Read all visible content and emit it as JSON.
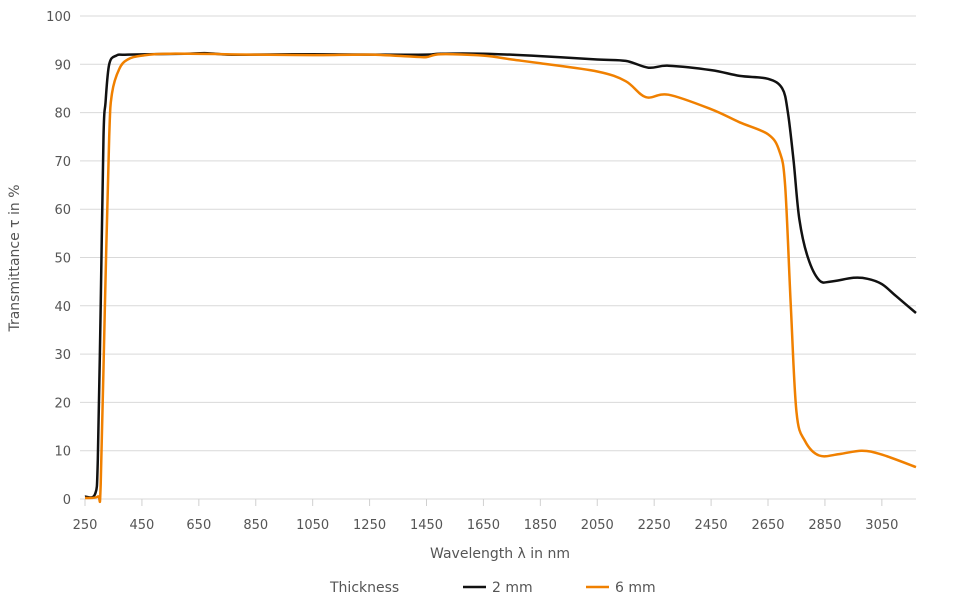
{
  "chart_data": {
    "type": "line",
    "title": "",
    "xlabel": "Wavelength λ in nm",
    "ylabel": "Transmittance τ in %",
    "xlim": [
      250,
      3170
    ],
    "ylim": [
      0,
      100
    ],
    "xticks": [
      250,
      450,
      650,
      850,
      1050,
      1250,
      1450,
      1650,
      1850,
      2050,
      2250,
      2450,
      2650,
      2850,
      3050
    ],
    "yticks": [
      0,
      10,
      20,
      30,
      40,
      50,
      60,
      70,
      80,
      90,
      100
    ],
    "grid": "horizontal",
    "legend": {
      "title": "Thickness",
      "placement": "bottom"
    },
    "series": [
      {
        "name": "2 mm",
        "color": "#111111",
        "x": [
          250,
          285,
          295,
          305,
          315,
          322,
          335,
          360,
          400,
          600,
          680,
          750,
          850,
          1050,
          1250,
          1450,
          1500,
          1650,
          1850,
          2050,
          2150,
          2230,
          2300,
          2450,
          2550,
          2650,
          2700,
          2720,
          2740,
          2760,
          2790,
          2830,
          2870,
          2950,
          3000,
          3050,
          3100,
          3170
        ],
        "y": [
          0.5,
          1,
          8,
          40,
          75,
          82,
          90,
          91.8,
          92,
          92.2,
          92.3,
          92,
          92,
          92.1,
          92,
          92,
          92.2,
          92.2,
          91.7,
          91,
          90.7,
          89.3,
          89.7,
          88.8,
          87.6,
          87,
          85,
          80,
          70,
          58,
          50,
          45.3,
          45,
          45.8,
          45.6,
          44.5,
          42,
          38.5
        ]
      },
      {
        "name": "6 mm",
        "color": "#f08000",
        "x": [
          250,
          295,
          305,
          320,
          335,
          345,
          370,
          400,
          450,
          550,
          850,
          1050,
          1250,
          1400,
          1450,
          1500,
          1650,
          1750,
          1850,
          2050,
          2150,
          2220,
          2300,
          2450,
          2550,
          2650,
          2690,
          2710,
          2730,
          2750,
          2780,
          2830,
          2900,
          2980,
          3050,
          3170
        ],
        "y": [
          0.2,
          0.5,
          3,
          40,
          75,
          84,
          89,
          91,
          91.8,
          92.2,
          92,
          91.9,
          92,
          91.6,
          91.5,
          92.1,
          91.8,
          91,
          90.2,
          88.5,
          86.5,
          83.2,
          83.7,
          80.7,
          78,
          75.5,
          72,
          65,
          40,
          18,
          12,
          9,
          9.3,
          10,
          9.2,
          6.6
        ]
      }
    ]
  }
}
